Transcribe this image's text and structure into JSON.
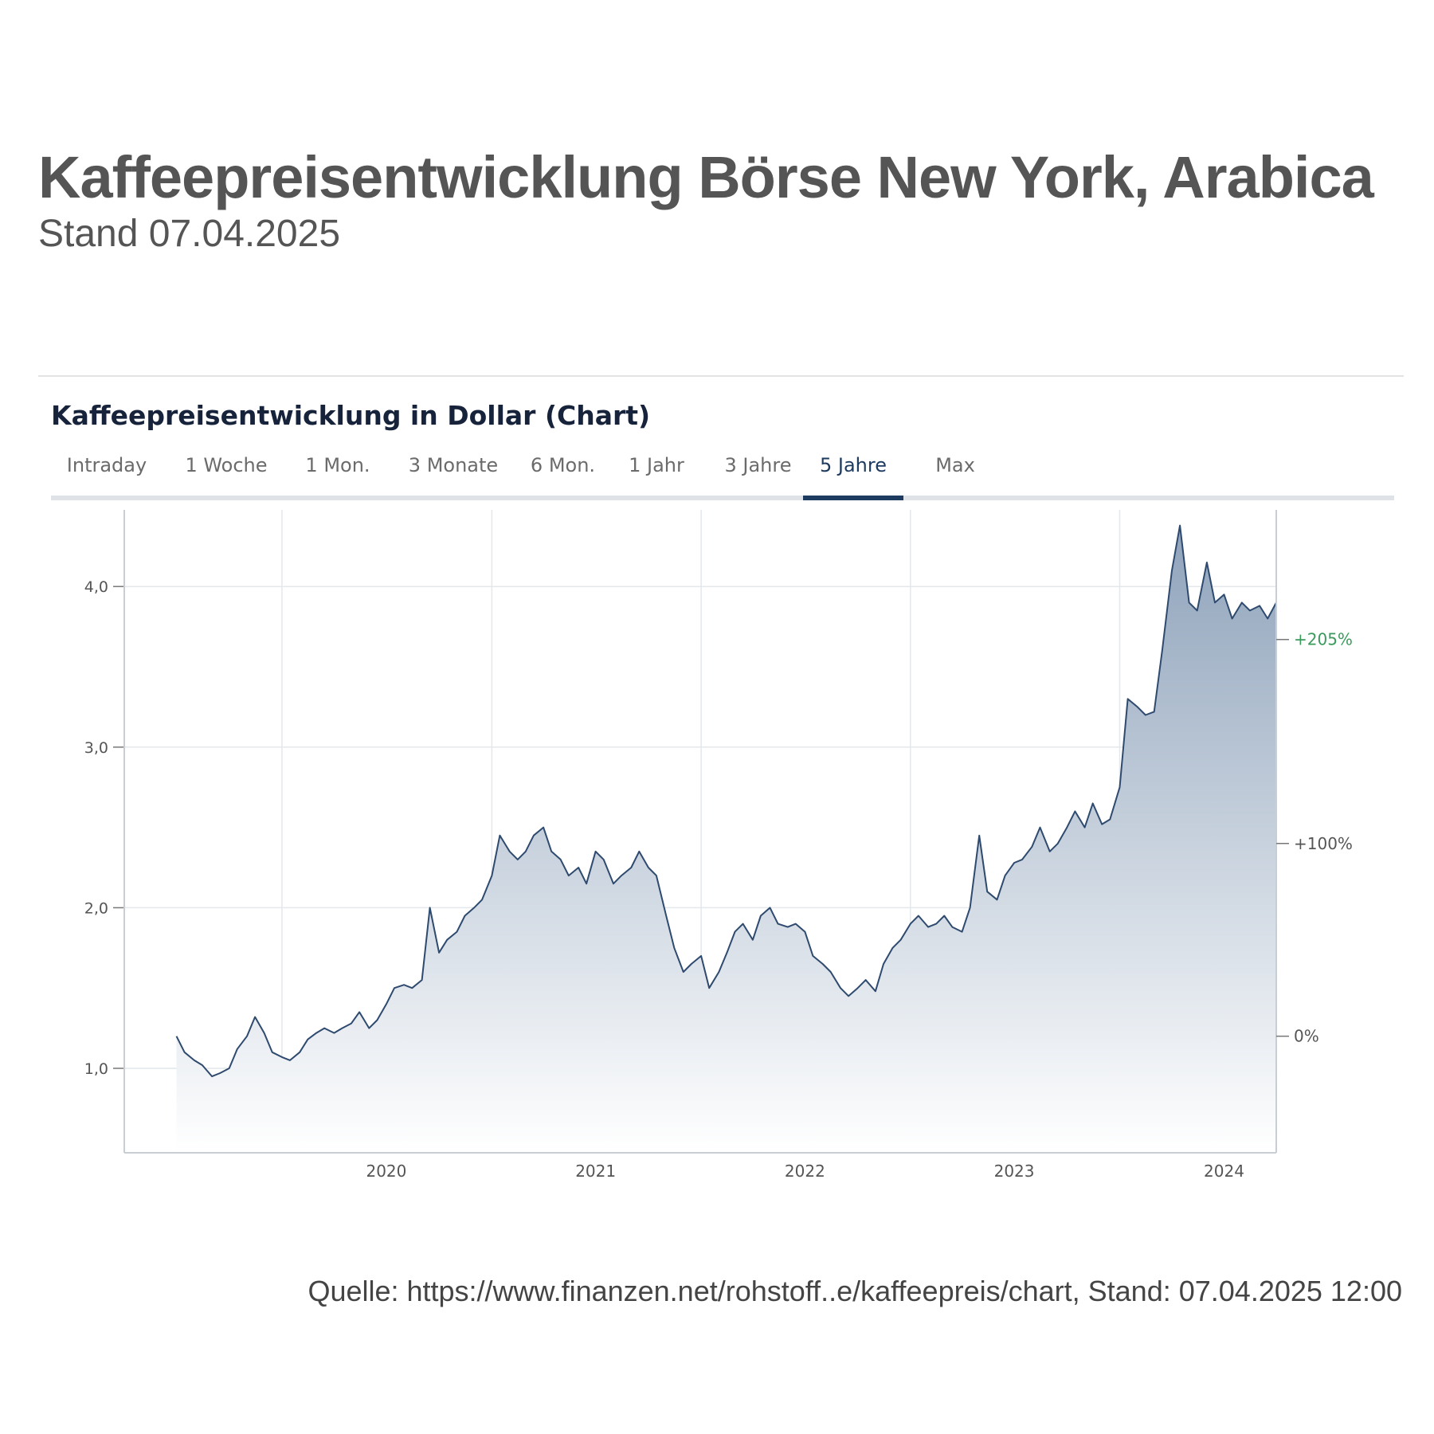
{
  "title": "Kaffeepreisentwicklung Börse New York, Arabica",
  "subtitle": "Stand 07.04.2025",
  "chart_heading": "Kaffeepreisentwicklung in Dollar (Chart)",
  "tabs": [
    {
      "label": "Intraday",
      "active": false
    },
    {
      "label": "1 Woche",
      "active": false
    },
    {
      "label": "1 Mon.",
      "active": false
    },
    {
      "label": "3 Monate",
      "active": false
    },
    {
      "label": "6 Mon.",
      "active": false
    },
    {
      "label": "1 Jahr",
      "active": false
    },
    {
      "label": "3 Jahre",
      "active": false
    },
    {
      "label": "5 Jahre",
      "active": true
    },
    {
      "label": "Max",
      "active": false
    }
  ],
  "source": "Quelle: https://www.finanzen.net/rohstoff..e/kaffeepreis/chart, Stand: 07.04.2025 12:00",
  "colors": {
    "line": "#2e4a6e",
    "area_top": "#8fa3bb",
    "area_bottom": "#ffffff",
    "grid": "#e4e7eb",
    "axis": "#c9ced5",
    "tick_text": "#555555",
    "percent_positive": "#3a9a5b",
    "percent_neutral": "#555555",
    "active_tab": "#1d3a5f"
  },
  "chart_data": {
    "type": "area",
    "title": "Kaffeepreisentwicklung in Dollar (Chart)",
    "xlabel": "",
    "ylabel": "",
    "x_ticks": [
      "2020",
      "2021",
      "2022",
      "2023",
      "2024"
    ],
    "y_ticks": [
      1.0,
      2.0,
      3.0,
      4.0
    ],
    "y_tick_labels": [
      "1,0",
      "2,0",
      "3,0",
      "4,0"
    ],
    "ylim": [
      0.5,
      4.5
    ],
    "xlim": [
      "2019-04-01",
      "2024-09-30"
    ],
    "grid": true,
    "right_axis": [
      {
        "label": "+205%",
        "value": 3.67,
        "positive": true
      },
      {
        "label": "+100%",
        "value": 2.4,
        "positive": false
      },
      {
        "label": "0%",
        "value": 1.2,
        "positive": false
      }
    ],
    "series": [
      {
        "x": [
          "2019-07-01",
          "2019-07-15",
          "2019-08-01",
          "2019-08-15",
          "2019-09-01",
          "2019-09-15",
          "2019-10-01",
          "2019-10-15",
          "2019-11-01",
          "2019-11-15",
          "2019-12-01",
          "2019-12-15",
          "2020-01-01",
          "2020-01-15",
          "2020-02-01",
          "2020-02-15",
          "2020-03-01",
          "2020-03-15",
          "2020-04-01",
          "2020-04-15",
          "2020-05-01",
          "2020-05-15",
          "2020-06-01",
          "2020-06-15",
          "2020-07-01",
          "2020-07-15",
          "2020-08-01",
          "2020-08-15",
          "2020-09-01",
          "2020-09-15",
          "2020-10-01",
          "2020-10-15",
          "2020-11-01",
          "2020-11-15",
          "2020-12-01",
          "2020-12-15",
          "2021-01-01",
          "2021-01-15",
          "2021-02-01",
          "2021-02-15",
          "2021-03-01",
          "2021-03-15",
          "2021-04-01",
          "2021-04-15",
          "2021-05-01",
          "2021-05-15",
          "2021-06-01",
          "2021-06-15",
          "2021-07-01",
          "2021-07-15",
          "2021-08-01",
          "2021-08-15",
          "2021-09-01",
          "2021-09-15",
          "2021-10-01",
          "2021-10-15",
          "2021-11-01",
          "2021-11-15",
          "2021-12-01",
          "2021-12-15",
          "2022-01-01",
          "2022-01-15",
          "2022-02-01",
          "2022-02-15",
          "2022-03-01",
          "2022-03-15",
          "2022-04-01",
          "2022-04-15",
          "2022-05-01",
          "2022-05-15",
          "2022-06-01",
          "2022-06-15",
          "2022-07-01",
          "2022-07-15",
          "2022-08-01",
          "2022-08-15",
          "2022-09-01",
          "2022-09-15",
          "2022-10-01",
          "2022-10-15",
          "2022-11-01",
          "2022-11-15",
          "2022-12-01",
          "2022-12-15",
          "2023-01-01",
          "2023-01-15",
          "2023-02-01",
          "2023-02-15",
          "2023-03-01",
          "2023-03-15",
          "2023-04-01",
          "2023-04-15",
          "2023-05-01",
          "2023-05-15",
          "2023-06-01",
          "2023-06-15",
          "2023-07-01",
          "2023-07-15",
          "2023-08-01",
          "2023-08-15",
          "2023-09-01",
          "2023-09-15",
          "2023-10-01",
          "2023-10-15",
          "2023-11-01",
          "2023-11-15",
          "2023-12-01",
          "2023-12-15",
          "2024-01-01",
          "2024-01-15",
          "2024-02-01",
          "2024-02-15",
          "2024-03-01",
          "2024-03-15",
          "2024-04-01",
          "2024-04-15",
          "2024-05-01",
          "2024-05-15",
          "2024-06-01",
          "2024-06-15",
          "2024-07-01",
          "2024-07-15",
          "2024-08-01",
          "2024-08-15",
          "2024-09-01",
          "2024-09-15",
          "2024-09-30"
        ],
        "values": [
          1.2,
          1.1,
          1.05,
          1.02,
          0.95,
          0.97,
          1.0,
          1.12,
          1.2,
          1.32,
          1.22,
          1.1,
          1.07,
          1.05,
          1.1,
          1.18,
          1.22,
          1.25,
          1.22,
          1.25,
          1.28,
          1.35,
          1.25,
          1.3,
          1.4,
          1.5,
          1.52,
          1.5,
          1.55,
          2.0,
          1.72,
          1.8,
          1.85,
          1.95,
          2.0,
          2.05,
          2.2,
          2.45,
          2.35,
          2.3,
          2.35,
          2.45,
          2.5,
          2.35,
          2.3,
          2.2,
          2.25,
          2.15,
          2.35,
          2.3,
          2.15,
          2.2,
          2.25,
          2.35,
          2.25,
          2.2,
          1.95,
          1.75,
          1.6,
          1.65,
          1.7,
          1.5,
          1.6,
          1.72,
          1.85,
          1.9,
          1.8,
          1.95,
          2.0,
          1.9,
          1.88,
          1.9,
          1.85,
          1.7,
          1.65,
          1.6,
          1.5,
          1.45,
          1.5,
          1.55,
          1.48,
          1.65,
          1.75,
          1.8,
          1.9,
          1.95,
          1.88,
          1.9,
          1.95,
          1.88,
          1.85,
          2.0,
          2.45,
          2.1,
          2.05,
          2.2,
          2.28,
          2.3,
          2.38,
          2.5,
          2.35,
          2.4,
          2.5,
          2.6,
          2.5,
          2.65,
          2.52,
          2.55,
          2.75,
          3.3,
          3.25,
          3.2,
          3.22,
          3.6,
          4.1,
          4.38,
          3.9,
          3.85,
          4.15,
          3.9,
          3.95,
          3.8,
          3.9,
          3.85,
          3.88,
          3.8,
          3.9
        ]
      }
    ]
  }
}
